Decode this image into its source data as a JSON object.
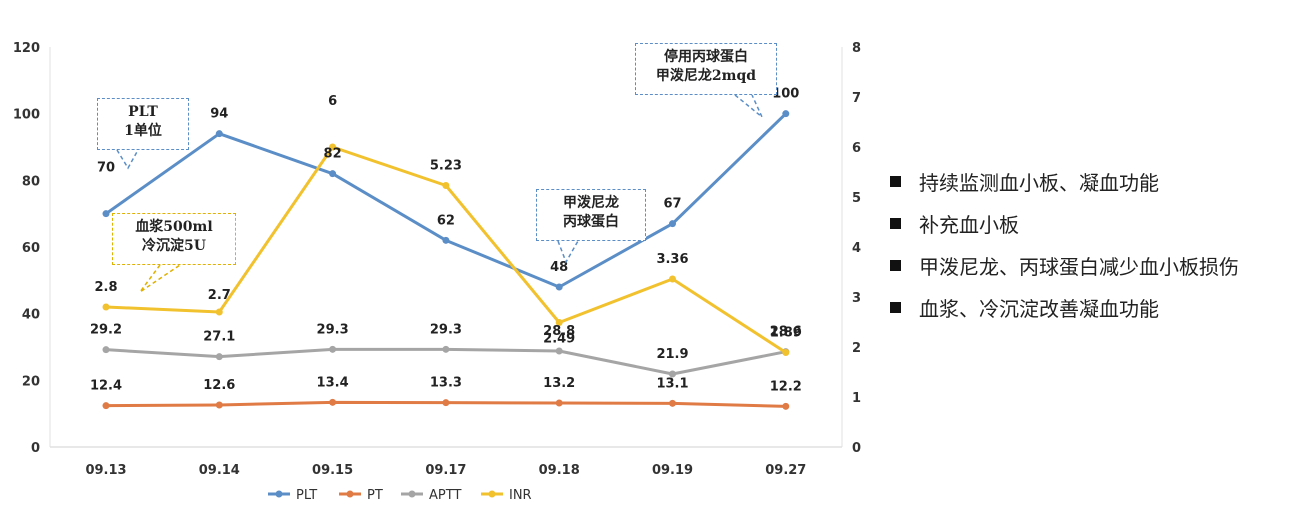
{
  "chart_data": {
    "type": "line",
    "categories": [
      "09.13",
      "09.14",
      "09.15",
      "09.17",
      "09.18",
      "09.19",
      "09.27"
    ],
    "y_left": {
      "ylim": [
        0,
        120
      ],
      "ticks": [
        "0",
        "20",
        "40",
        "60",
        "80",
        "100",
        "120"
      ]
    },
    "y_right": {
      "ylim": [
        0,
        8
      ],
      "ticks": [
        "0",
        "1",
        "2",
        "3",
        "4",
        "5",
        "6",
        "7",
        "8"
      ]
    },
    "grid": false,
    "legend_position": "bottom",
    "series": [
      {
        "name": "PLT",
        "axis": "left",
        "color": "#5b8ec7",
        "values": [
          70,
          94,
          82,
          62,
          48,
          67,
          100
        ],
        "labels": [
          "70",
          "94",
          "82",
          "62",
          "48",
          "67",
          "100"
        ]
      },
      {
        "name": "PT",
        "axis": "left",
        "color": "#e07b46",
        "values": [
          12.4,
          12.6,
          13.4,
          13.3,
          13.2,
          13.1,
          12.2
        ],
        "labels": [
          "12.4",
          "12.6",
          "13.4",
          "13.3",
          "13.2",
          "13.1",
          "12.2"
        ]
      },
      {
        "name": "APTT",
        "axis": "left",
        "color": "#a5a5a5",
        "values": [
          29.2,
          27.1,
          29.3,
          29.3,
          28.8,
          21.9,
          28.6
        ],
        "labels": [
          "29.2",
          "27.1",
          "29.3",
          "29.3",
          "28.8",
          "21.9",
          "28.6"
        ]
      },
      {
        "name": "INR",
        "axis": "right",
        "color": "#f2c12e",
        "values": [
          2.8,
          2.7,
          6,
          5.23,
          2.49,
          3.36,
          1.89
        ],
        "labels": [
          "2.8",
          "2.7",
          "6",
          "5.23",
          "2.49",
          "3.36",
          "1.89"
        ]
      }
    ]
  },
  "annotations": {
    "plt_transfusion": [
      "PLT",
      "1单位"
    ],
    "plasma": [
      "血浆500ml",
      "冷沉淀5U"
    ],
    "drug_start": [
      "甲泼尼龙",
      "丙球蛋白"
    ],
    "drug_stop": [
      "停用丙球蛋白",
      "甲泼尼龙2mqd"
    ]
  },
  "side_legend": {
    "items": [
      "持续监测血小板、凝血功能",
      "补充血小板",
      "甲泼尼龙、丙球蛋白减少血小板损伤",
      "血浆、冷沉淀改善凝血功能"
    ]
  }
}
